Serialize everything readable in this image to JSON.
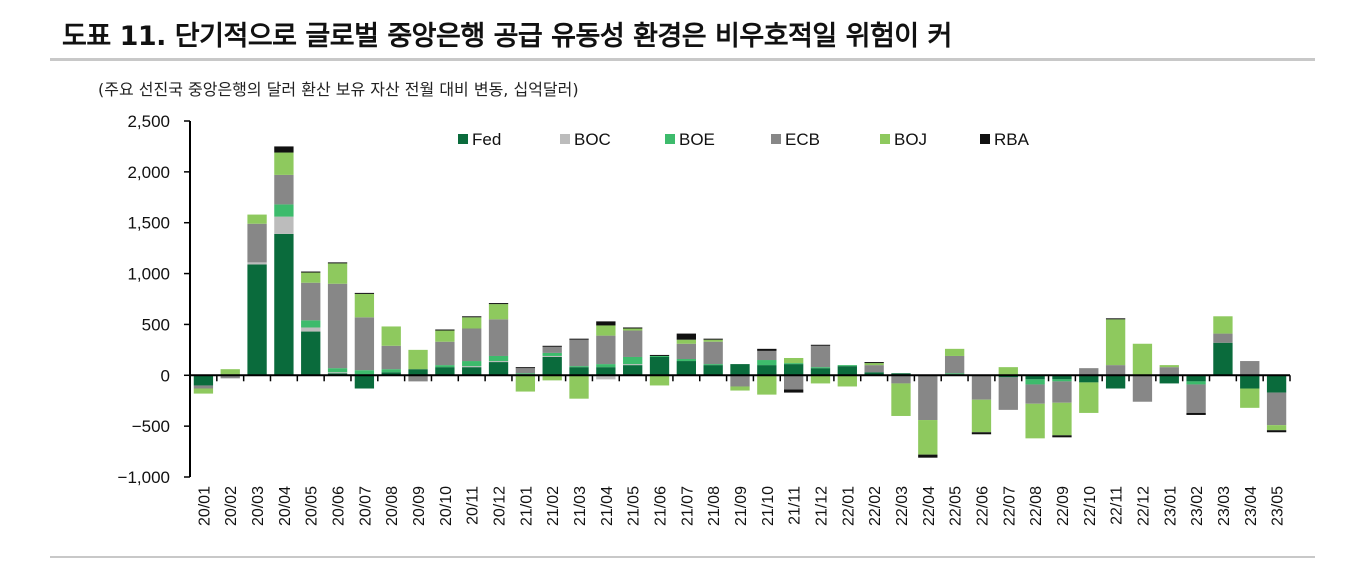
{
  "header": {
    "title": "도표 11. 단기적으로 글로벌 중앙은행 공급 유동성 환경은 비우호적일 위험이 커",
    "subtitle": "(주요 선진국 중앙은행의 달러 환산 보유 자산 전월 대비 변동, 십억달러)"
  },
  "colors": {
    "Fed": "#0a6b3c",
    "BOC": "#bcbcbc",
    "BOE": "#3dbb6c",
    "ECB": "#878787",
    "BOJ": "#8ec95e",
    "RBA": "#111111"
  },
  "chart_data": {
    "type": "bar",
    "stacked": true,
    "ylim": [
      -1000,
      2500
    ],
    "yticks": [
      2500,
      2000,
      1500,
      1000,
      500,
      0,
      -500,
      -1000
    ],
    "ytick_labels": [
      "2,500",
      "2,000",
      "1,500",
      "1,000",
      "500",
      "0",
      "−500",
      "−1,000"
    ],
    "legend_position": "top",
    "categories": [
      "20/01",
      "20/02",
      "20/03",
      "20/04",
      "20/05",
      "20/06",
      "20/07",
      "20/08",
      "20/09",
      "20/10",
      "20/11",
      "20/12",
      "21/01",
      "21/02",
      "21/03",
      "21/04",
      "21/05",
      "21/06",
      "21/07",
      "21/08",
      "21/09",
      "21/10",
      "21/11",
      "21/12",
      "22/01",
      "22/02",
      "22/03",
      "22/04",
      "22/05",
      "22/06",
      "22/07",
      "22/08",
      "22/09",
      "22/10",
      "22/11",
      "22/12",
      "23/01",
      "23/02",
      "23/03",
      "23/04",
      "23/05"
    ],
    "series": [
      {
        "name": "Fed",
        "values": [
          -100,
          0,
          1090,
          1390,
          430,
          20,
          -130,
          30,
          60,
          80,
          80,
          130,
          10,
          180,
          80,
          80,
          100,
          180,
          140,
          100,
          110,
          100,
          110,
          70,
          90,
          30,
          20,
          0,
          10,
          0,
          -20,
          -40,
          -40,
          -70,
          -130,
          0,
          -80,
          -60,
          320,
          -130,
          -170
        ]
      },
      {
        "name": "BOC",
        "values": [
          0,
          0,
          20,
          170,
          40,
          10,
          0,
          0,
          0,
          0,
          10,
          10,
          0,
          10,
          0,
          -40,
          10,
          0,
          0,
          0,
          0,
          0,
          0,
          0,
          0,
          0,
          0,
          0,
          0,
          0,
          0,
          0,
          0,
          0,
          0,
          0,
          0,
          0,
          0,
          0,
          0
        ]
      },
      {
        "name": "BOE",
        "values": [
          0,
          0,
          0,
          120,
          70,
          40,
          50,
          30,
          0,
          20,
          50,
          50,
          10,
          30,
          10,
          30,
          70,
          10,
          20,
          10,
          0,
          50,
          10,
          10,
          10,
          0,
          0,
          0,
          10,
          0,
          0,
          -50,
          -20,
          0,
          0,
          0,
          0,
          -30,
          0,
          0,
          0
        ]
      },
      {
        "name": "ECB",
        "values": [
          -30,
          -30,
          380,
          290,
          370,
          830,
          520,
          230,
          -60,
          230,
          320,
          360,
          50,
          60,
          260,
          280,
          260,
          0,
          150,
          220,
          -110,
          90,
          -140,
          210,
          0,
          70,
          -80,
          -440,
          170,
          -240,
          -320,
          -190,
          -210,
          70,
          100,
          -260,
          80,
          -280,
          90,
          140,
          -320
        ]
      },
      {
        "name": "BOJ",
        "values": [
          -50,
          60,
          90,
          220,
          100,
          200,
          230,
          190,
          190,
          110,
          110,
          150,
          -160,
          -50,
          -230,
          100,
          20,
          -100,
          40,
          20,
          -40,
          -190,
          50,
          -80,
          -110,
          20,
          -320,
          -340,
          70,
          -320,
          80,
          -340,
          -320,
          -300,
          450,
          310,
          20,
          0,
          170,
          -190,
          -50
        ]
      },
      {
        "name": "RBA",
        "values": [
          0,
          0,
          0,
          60,
          10,
          10,
          10,
          0,
          0,
          10,
          10,
          10,
          10,
          10,
          10,
          40,
          10,
          10,
          60,
          10,
          0,
          20,
          -30,
          10,
          0,
          10,
          0,
          -30,
          0,
          -20,
          0,
          0,
          -20,
          0,
          10,
          0,
          0,
          -20,
          0,
          0,
          -20
        ]
      }
    ]
  }
}
